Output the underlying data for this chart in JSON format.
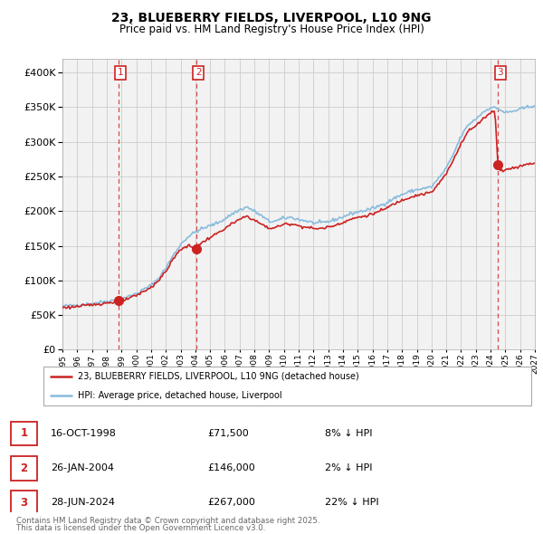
{
  "title_line1": "23, BLUEBERRY FIELDS, LIVERPOOL, L10 9NG",
  "title_line2": "Price paid vs. HM Land Registry's House Price Index (HPI)",
  "background_color": "#ffffff",
  "grid_color": "#cccccc",
  "plot_bg_color": "#f2f2f2",
  "hpi_color": "#88bbdd",
  "price_color": "#cc2222",
  "year_start": 1995,
  "year_end": 2027,
  "ylim_min": 0,
  "ylim_max": 420000,
  "yticks": [
    0,
    50000,
    100000,
    150000,
    200000,
    250000,
    300000,
    350000,
    400000
  ],
  "sale_prices": [
    71500,
    146000,
    267000
  ],
  "sale_labels": [
    "1",
    "2",
    "3"
  ],
  "sale_times": [
    1998.789,
    2004.069,
    2024.497
  ],
  "legend_price_label": "23, BLUEBERRY FIELDS, LIVERPOOL, L10 9NG (detached house)",
  "legend_hpi_label": "HPI: Average price, detached house, Liverpool",
  "table_rows": [
    {
      "label": "1",
      "date": "16-OCT-1998",
      "price": "£71,500",
      "vs_hpi": "8% ↓ HPI"
    },
    {
      "label": "2",
      "date": "26-JAN-2004",
      "price": "£146,000",
      "vs_hpi": "2% ↓ HPI"
    },
    {
      "label": "3",
      "date": "28-JUN-2024",
      "price": "£267,000",
      "vs_hpi": "22% ↓ HPI"
    }
  ],
  "footnote_line1": "Contains HM Land Registry data © Crown copyright and database right 2025.",
  "footnote_line2": "This data is licensed under the Open Government Licence v3.0."
}
